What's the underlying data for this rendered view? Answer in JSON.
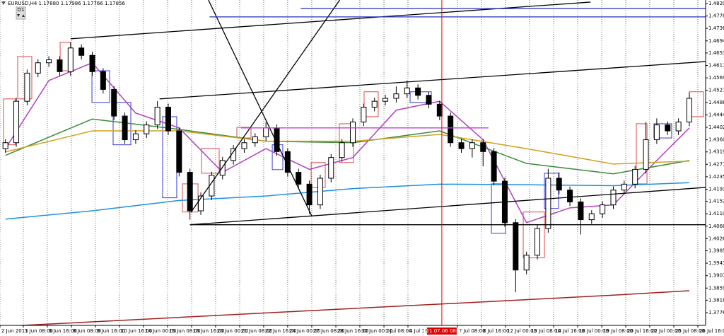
{
  "chart_data": {
    "type": "candlestick",
    "title": "EURUSD,H4  1.17880 1.17986 1.17766 1.17856",
    "badge": "D1",
    "xlim": [
      -0.5,
      64.5
    ],
    "ylim": [
      1.3733,
      1.4832
    ],
    "xgrid": true,
    "up_color": "#ffffff",
    "down_color": "#000000",
    "open": [
      1.433,
      1.435,
      1.449,
      1.4585,
      1.462,
      1.463,
      1.459,
      1.467,
      1.4645,
      1.459,
      1.453,
      1.444,
      1.436,
      1.438,
      1.441,
      1.447,
      1.439,
      1.425,
      1.412,
      1.417,
      1.424,
      1.429,
      1.433,
      1.435,
      1.437,
      1.44,
      1.432,
      1.425,
      1.421,
      1.414,
      1.423,
      1.43,
      1.435,
      1.442,
      1.447,
      1.449,
      1.45,
      1.4515,
      1.4535,
      1.451,
      1.448,
      1.444,
      1.435,
      1.433,
      1.435,
      1.432,
      1.422,
      1.408,
      1.392,
      1.397,
      1.406,
      1.423,
      1.419,
      1.415,
      1.409,
      1.411,
      1.414,
      1.419,
      1.421,
      1.426,
      1.436,
      1.441,
      1.439,
      1.442
    ],
    "high": [
      1.4362,
      1.4502,
      1.4597,
      1.4632,
      1.4642,
      1.4642,
      1.469,
      1.4682,
      1.4657,
      1.4602,
      1.4542,
      1.4452,
      1.4392,
      1.4422,
      1.449,
      1.4482,
      1.4402,
      1.4262,
      1.4182,
      1.4252,
      1.4302,
      1.4342,
      1.4362,
      1.4382,
      1.442,
      1.4412,
      1.4332,
      1.4262,
      1.4222,
      1.4242,
      1.4312,
      1.4362,
      1.4432,
      1.4482,
      1.4502,
      1.4512,
      1.454,
      1.456,
      1.4547,
      1.4522,
      1.4492,
      1.4452,
      1.4362,
      1.4362,
      1.4362,
      1.4332,
      1.4232,
      1.4092,
      1.3982,
      1.4072,
      1.4262,
      1.425,
      1.4202,
      1.4162,
      1.4122,
      1.4152,
      1.4202,
      1.4222,
      1.4272,
      1.442,
      1.4432,
      1.4422,
      1.4432,
      1.452
    ],
    "low": [
      1.4316,
      1.4336,
      1.4476,
      1.4571,
      1.4606,
      1.4576,
      1.4576,
      1.4631,
      1.4576,
      1.4516,
      1.4426,
      1.4346,
      1.4346,
      1.4366,
      1.4396,
      1.4376,
      1.4236,
      1.409,
      1.4106,
      1.4156,
      1.4226,
      1.4276,
      1.4316,
      1.4336,
      1.4356,
      1.4306,
      1.4236,
      1.4196,
      1.411,
      1.4126,
      1.4216,
      1.4286,
      1.4336,
      1.4406,
      1.4456,
      1.4476,
      1.4486,
      1.4501,
      1.4496,
      1.4466,
      1.4426,
      1.4336,
      1.4316,
      1.43,
      1.427,
      1.4206,
      1.4066,
      1.3845,
      1.3906,
      1.3956,
      1.4046,
      1.4176,
      1.4136,
      1.404,
      1.4076,
      1.4096,
      1.4126,
      1.4176,
      1.4196,
      1.4246,
      1.4346,
      1.4376,
      1.4376,
      1.4406
    ],
    "close": [
      1.435,
      1.449,
      1.4585,
      1.462,
      1.463,
      1.459,
      1.467,
      1.4645,
      1.459,
      1.453,
      1.444,
      1.436,
      1.438,
      1.441,
      1.447,
      1.439,
      1.425,
      1.412,
      1.417,
      1.424,
      1.429,
      1.433,
      1.435,
      1.437,
      1.44,
      1.432,
      1.425,
      1.421,
      1.414,
      1.423,
      1.43,
      1.435,
      1.442,
      1.447,
      1.449,
      1.45,
      1.4515,
      1.4535,
      1.451,
      1.448,
      1.444,
      1.435,
      1.433,
      1.435,
      1.432,
      1.422,
      1.408,
      1.392,
      1.397,
      1.406,
      1.423,
      1.419,
      1.415,
      1.409,
      1.411,
      1.414,
      1.419,
      1.421,
      1.426,
      1.436,
      1.441,
      1.439,
      1.442,
      1.45
    ],
    "boxes": {
      "up_color": "#e04848",
      "down_color": "#3a3ad0",
      "x0": [
        -0.17,
        1.13,
        5.04,
        7.97,
        9.92,
        14.48,
        16.3,
        18.06,
        21.32,
        24.58,
        28.16,
        30.76,
        33.04,
        37.28,
        44.77,
        47.7,
        49.65,
        58.12,
        59.74,
        63.0
      ],
      "x1": [
        0.93,
        2.43,
        6.01,
        9.6,
        11.55,
        15.78,
        17.74,
        19.69,
        22.62,
        25.55,
        29.46,
        32.07,
        34.34,
        39.23,
        46.07,
        49.65,
        50.95,
        59.1,
        61.37,
        64.3
      ],
      "open": [
        1.4343,
        1.4498,
        1.4593,
        1.4593,
        1.4486,
        1.4438,
        1.4116,
        1.4247,
        1.4366,
        1.4343,
        1.4199,
        1.4283,
        1.4438,
        1.4522,
        1.4211,
        1.3961,
        1.4247,
        1.4211,
        1.4414,
        1.4438
      ],
      "close": [
        1.4498,
        1.4641,
        1.4689,
        1.4486,
        1.4343,
        1.4164,
        1.4211,
        1.4331,
        1.4402,
        1.4259,
        1.4283,
        1.4414,
        1.4522,
        1.4486,
        1.4044,
        1.4116,
        1.4128,
        1.4414,
        1.4366,
        1.4522
      ]
    },
    "series": [
      {
        "color": "#b040c0",
        "x": [
          0,
          4,
          8,
          12,
          16,
          20,
          24,
          28,
          32,
          36,
          40,
          44,
          48,
          52,
          56,
          60,
          63
        ],
        "values": [
          1.433,
          1.456,
          1.462,
          1.445,
          1.44,
          1.425,
          1.433,
          1.426,
          1.43,
          1.446,
          1.449,
          1.436,
          1.408,
          1.413,
          1.414,
          1.429,
          1.44
        ]
      },
      {
        "color": "#3a8a3a",
        "x": [
          0,
          8,
          16,
          24,
          32,
          40,
          48,
          56,
          63
        ],
        "values": [
          1.4307,
          1.443,
          1.4395,
          1.4355,
          1.435,
          1.439,
          1.428,
          1.4245,
          1.429
        ]
      },
      {
        "color": "#d4a020",
        "x": [
          0,
          8,
          16,
          24,
          32,
          40,
          48,
          56,
          63
        ],
        "values": [
          1.4319,
          1.439,
          1.439,
          1.4355,
          1.4355,
          1.4378,
          1.433,
          1.4278,
          1.4288
        ]
      },
      {
        "color": "#2090e0",
        "x": [
          0,
          8,
          16,
          24,
          32,
          40,
          48,
          56,
          63
        ],
        "values": [
          1.4092,
          1.412,
          1.4155,
          1.417,
          1.4195,
          1.421,
          1.4208,
          1.4205,
          1.4215
        ]
      },
      {
        "color": "#a02020",
        "x": [
          0,
          8,
          16,
          24,
          32,
          40,
          48,
          56,
          63
        ],
        "values": [
          1.373,
          1.3745,
          1.376,
          1.3775,
          1.379,
          1.3805,
          1.382,
          1.3835,
          1.385
        ]
      }
    ],
    "lines": [
      {
        "color": "#000000",
        "x": [
          6.0,
          53.9
        ],
        "y": [
          1.4701,
          1.4825
        ]
      },
      {
        "color": "#000000",
        "x": [
          14.2,
          64.5
        ],
        "y": [
          1.4498,
          1.4624
        ]
      },
      {
        "color": "#000000",
        "x": [
          17.0,
          64.5
        ],
        "y": [
          1.4073,
          1.4199
        ]
      },
      {
        "color": "#000000",
        "x": [
          17.0,
          64.5
        ],
        "y": [
          1.4073,
          1.4073
        ]
      },
      {
        "color": "#000000",
        "x": [
          18.7,
          28.2
        ],
        "y": [
          1.4832,
          1.4104
        ]
      },
      {
        "color": "#000000",
        "x": [
          17.1,
          30.8
        ],
        "y": [
          1.4116,
          1.4832
        ]
      },
      {
        "color": "#2030c0",
        "x": [
          27.2,
          64.5
        ],
        "y": [
          1.4803,
          1.4803
        ]
      },
      {
        "color": "#2030c0",
        "x": [
          18.8,
          64.5
        ],
        "y": [
          1.4775,
          1.4775
        ]
      },
      {
        "color": "#c040d0",
        "x": [
          21.7,
          44.5
        ],
        "y": [
          1.44,
          1.44
        ]
      }
    ],
    "cursor": {
      "x": 40.2,
      "label": "2011.07.06 08:00",
      "color": "#e00000"
    },
    "yticks": [
      {
        "value": 1.482,
        "label": "1.48200"
      },
      {
        "value": 1.4778,
        "label": "1.47780"
      },
      {
        "value": 1.4736,
        "label": "1.47360"
      },
      {
        "value": 1.4694,
        "label": "1.46940"
      },
      {
        "value": 1.4653,
        "label": "1.46530"
      },
      {
        "value": 1.4611,
        "label": "1.46110"
      },
      {
        "value": 1.4569,
        "label": "1.45690"
      },
      {
        "value": 1.4527,
        "label": "1.45270"
      },
      {
        "value": 1.4486,
        "label": "1.44860"
      },
      {
        "value": 1.4444,
        "label": "1.44440"
      },
      {
        "value": 1.4402,
        "label": "1.44020"
      },
      {
        "value": 1.436,
        "label": "1.43600"
      },
      {
        "value": 1.4319,
        "label": "1.43190"
      },
      {
        "value": 1.4277,
        "label": "1.42770"
      },
      {
        "value": 1.4235,
        "label": "1.42350"
      },
      {
        "value": 1.4193,
        "label": "1.41930"
      },
      {
        "value": 1.4152,
        "label": "1.41520"
      },
      {
        "value": 1.411,
        "label": "1.41100"
      },
      {
        "value": 1.4068,
        "label": "1.40680"
      },
      {
        "value": 1.4026,
        "label": "1.40260"
      },
      {
        "value": 1.3985,
        "label": "1.39850"
      },
      {
        "value": 1.3943,
        "label": "1.39430"
      },
      {
        "value": 1.3901,
        "label": "1.39010"
      },
      {
        "value": 1.3859,
        "label": "1.38590"
      },
      {
        "value": 1.3818,
        "label": "1.38180"
      },
      {
        "value": 1.3776,
        "label": "1.37760"
      }
    ],
    "xticks": [
      {
        "value": -0.5,
        "label": "2 Jun 2011"
      },
      {
        "value": 1.65,
        "label": "3 Jun 08:00"
      },
      {
        "value": 3.86,
        "label": "6 Jun 16:00"
      },
      {
        "value": 6.08,
        "label": "8 Jun 08:00"
      },
      {
        "value": 8.29,
        "label": "9 Jun 16:00"
      },
      {
        "value": 10.5,
        "label": "10 Jun 16:00"
      },
      {
        "value": 12.72,
        "label": "14 Jun 00:00"
      },
      {
        "value": 14.94,
        "label": "15 Jun 08:00"
      },
      {
        "value": 17.15,
        "label": "16 Jun 16:00"
      },
      {
        "value": 19.36,
        "label": "20 Jun 00:00"
      },
      {
        "value": 21.58,
        "label": "21 Jun 08:00"
      },
      {
        "value": 23.79,
        "label": "22 Jun 16:00"
      },
      {
        "value": 26.0,
        "label": "24 Jun 00:00"
      },
      {
        "value": 28.22,
        "label": "27 Jun 08:00"
      },
      {
        "value": 30.44,
        "label": "28 Jun 16:00"
      },
      {
        "value": 32.65,
        "label": "30 Jun 00:00"
      },
      {
        "value": 34.87,
        "label": "1 Jul 08:00"
      },
      {
        "value": 37.08,
        "label": "4 Jul 16:00"
      },
      {
        "value": 41.64,
        "label": "7 Jul 08:00"
      },
      {
        "value": 43.85,
        "label": "8 Jul 16:00"
      },
      {
        "value": 46.07,
        "label": "12 Jul 00:00"
      },
      {
        "value": 48.28,
        "label": "13 Jul 08:00"
      },
      {
        "value": 50.5,
        "label": "14 Jul 16:00"
      },
      {
        "value": 52.71,
        "label": "18 Jul 00:00"
      },
      {
        "value": 54.93,
        "label": "19 Jul 08:00"
      },
      {
        "value": 57.14,
        "label": "20 Jul 16:00"
      },
      {
        "value": 59.35,
        "label": "22 Jul 00:00"
      },
      {
        "value": 61.57,
        "label": "25 Jul 08:00"
      },
      {
        "value": 63.78,
        "label": "26 Jul 16:00"
      }
    ]
  }
}
